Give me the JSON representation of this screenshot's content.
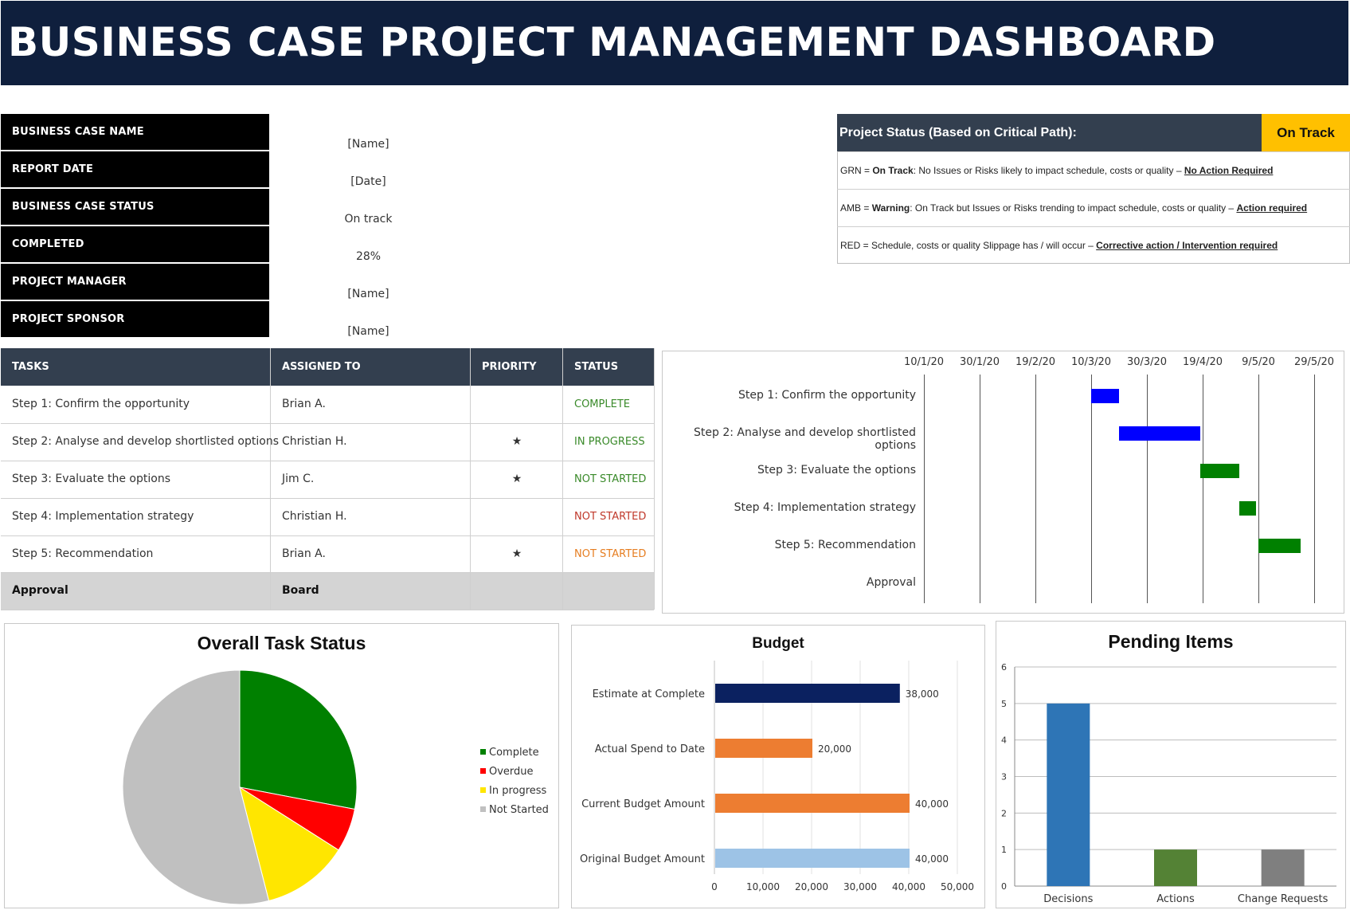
{
  "header": {
    "title": "BUSINESS CASE PROJECT MANAGEMENT DASHBOARD"
  },
  "info": [
    {
      "label": "BUSINESS CASE NAME",
      "value": "[Name]"
    },
    {
      "label": "REPORT DATE",
      "value": "[Date]"
    },
    {
      "label": "BUSINESS CASE STATUS",
      "value": "On track"
    },
    {
      "label": "COMPLETED",
      "value": "28%"
    },
    {
      "label": "PROJECT MANAGER",
      "value": "[Name]"
    },
    {
      "label": "PROJECT SPONSOR",
      "value": "[Name]"
    }
  ],
  "project_status": {
    "heading": "Project Status (Based on Critical Path):",
    "value": "On Track",
    "value_color": "#ffc000",
    "legend": [
      {
        "prefix": "GRN = ",
        "term": "On Track",
        "text": ": No Issues or Risks likely to impact schedule, costs or quality – ",
        "action": "No Action Required"
      },
      {
        "prefix": "AMB = ",
        "term": "Warning",
        "text": ": On Track but Issues or Risks trending to impact schedule, costs or quality – ",
        "action": "Action required"
      },
      {
        "prefix": "RED = ",
        "term": "",
        "text": "Schedule, costs or quality Slippage has / will occur – ",
        "action": "Corrective action / Intervention required"
      }
    ]
  },
  "tasks": {
    "headers": [
      "TASKS",
      "ASSIGNED TO",
      "PRIORITY",
      "STATUS"
    ],
    "rows": [
      {
        "task": "Step 1: Confirm the opportunity",
        "assigned": "Brian A.",
        "priority": "",
        "status": "COMPLETE",
        "status_color": "#3a8a2a"
      },
      {
        "task": "Step 2: Analyse and develop shortlisted options",
        "assigned": "Christian H.",
        "priority": "★",
        "status": "IN PROGRESS",
        "status_color": "#3a8a2a"
      },
      {
        "task": "Step 3: Evaluate the options",
        "assigned": "Jim C.",
        "priority": "★",
        "status": "NOT STARTED",
        "status_color": "#3a8a2a"
      },
      {
        "task": "Step 4: Implementation strategy",
        "assigned": "Christian H.",
        "priority": "",
        "status": "NOT STARTED",
        "status_color": "#c0392b"
      },
      {
        "task": "Step 5: Recommendation",
        "assigned": "Brian A.",
        "priority": "★",
        "status": "NOT STARTED",
        "status_color": "#e67e22"
      }
    ],
    "approval": {
      "task": "Approval",
      "assigned": "Board"
    }
  },
  "chart_data": [
    {
      "type": "bar",
      "chart": "gantt",
      "dates": [
        "10/1/20",
        "30/1/20",
        "19/2/20",
        "10/3/20",
        "30/3/20",
        "19/4/20",
        "9/5/20",
        "29/5/20"
      ],
      "steps": [
        {
          "label": "Step 1: Confirm the opportunity",
          "start": "10/3/20",
          "end": "20/3/20",
          "color": "#0000ff"
        },
        {
          "label": "Step 2: Analyse and develop shortlisted options",
          "start": "20/3/20",
          "end": "18/4/20",
          "color": "#0000ff"
        },
        {
          "label": "Step 3: Evaluate the options",
          "start": "18/4/20",
          "end": "2/5/20",
          "color": "#008000"
        },
        {
          "label": "Step 4: Implementation strategy",
          "start": "2/5/20",
          "end": "8/5/20",
          "color": "#008000"
        },
        {
          "label": "Step 5: Recommendation",
          "start": "9/5/20",
          "end": "24/5/20",
          "color": "#008000"
        },
        {
          "label": "Approval",
          "start": null,
          "end": null,
          "color": "#008000"
        }
      ]
    },
    {
      "type": "pie",
      "title": "Overall Task Status",
      "legend_position": "right",
      "slices": [
        {
          "label": "Complete",
          "value": 28,
          "color": "#008000"
        },
        {
          "label": "Overdue",
          "value": 6,
          "color": "#ff0000"
        },
        {
          "label": "In progress",
          "value": 12,
          "color": "#ffe600"
        },
        {
          "label": "Not Started",
          "value": 54,
          "color": "#c0c0c0"
        }
      ]
    },
    {
      "type": "bar",
      "orientation": "horizontal",
      "title": "Budget",
      "categories": [
        "Estimate at Complete",
        "Actual Spend to Date",
        "Current Budget Amount",
        "Original Budget Amount"
      ],
      "values": [
        38000,
        20000,
        40000,
        40000
      ],
      "value_labels": [
        "38,000",
        "20,000",
        "40,000",
        "40,000"
      ],
      "colors": [
        "#0b2160",
        "#ed7d31",
        "#ed7d31",
        "#9dc3e6"
      ],
      "xlim": [
        0,
        50000
      ],
      "ticks": [
        "0",
        "10,000",
        "20,000",
        "30,000",
        "40,000",
        "50,000"
      ],
      "grid": true
    },
    {
      "type": "bar",
      "title": "Pending Items",
      "categories": [
        "Decisions",
        "Actions",
        "Change Requests"
      ],
      "values": [
        5,
        1,
        1
      ],
      "colors": [
        "#2e75b6",
        "#548235",
        "#7f7f7f"
      ],
      "ylim": [
        0,
        6
      ],
      "ticks": [
        "0",
        "1",
        "2",
        "3",
        "4",
        "5",
        "6"
      ],
      "grid": true
    }
  ]
}
